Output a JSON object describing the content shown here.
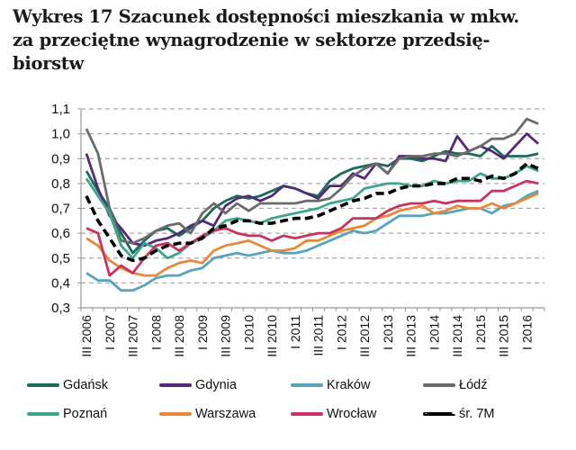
{
  "title": {
    "line1": "Wykres 17 Szacunek dostępności mieszkania w mkw.",
    "line2": "za przeciętne wynagrodzenie w sektorze przedsię-",
    "line3": "biorstw"
  },
  "chart_data": {
    "type": "line",
    "title": "Wykres 17 Szacunek dostępności mieszkania w mkw. za przeciętne wynagrodzenie w sektorze przedsiębiorstw",
    "xlabel": "",
    "ylabel": "",
    "ylim": [
      0.3,
      1.1
    ],
    "yticks": [
      "0,3",
      "0,4",
      "0,5",
      "0,6",
      "0,7",
      "0,8",
      "0,9",
      "1,0",
      "1,1"
    ],
    "grid": "horizontal dashed",
    "legend_position": "bottom",
    "x": [
      "III 2006",
      "IV 2006",
      "I 2007",
      "II 2007",
      "III 2007",
      "IV 2007",
      "I 2008",
      "II 2008",
      "III 2008",
      "IV 2008",
      "I 2009",
      "II 2009",
      "III 2009",
      "IV 2009",
      "I 2010",
      "II 2010",
      "III 2010",
      "IV 2010",
      "I 2011",
      "II 2011",
      "III 2011",
      "IV 2011",
      "I 2012",
      "II 2012",
      "III 2012",
      "IV 2012",
      "I 2013",
      "II 2013",
      "III 2013",
      "IV 2013",
      "I 2014",
      "II 2014",
      "III 2014",
      "IV 2014",
      "I 2015",
      "II 2015",
      "III 2015",
      "IV 2015",
      "I 2016",
      "II 2016"
    ],
    "xtick_labels": [
      "III 2006",
      "I 2007",
      "III 2007",
      "I 2008",
      "III 2008",
      "I 2009",
      "III 2009",
      "I 2010",
      "III 2010",
      "I 2011",
      "III 2011",
      "I 2012",
      "III 2012",
      "I 2013",
      "III 2013",
      "I 2014",
      "III 2014",
      "I 2015",
      "III 2015",
      "I 2016"
    ],
    "series": [
      {
        "name": "Gdańsk",
        "color": "#1a6b5a",
        "dashed": false,
        "values": [
          0.85,
          0.77,
          0.7,
          0.6,
          0.52,
          0.57,
          0.61,
          0.62,
          0.59,
          0.62,
          0.65,
          0.7,
          0.73,
          0.75,
          0.74,
          0.75,
          0.77,
          0.79,
          0.78,
          0.76,
          0.75,
          0.81,
          0.84,
          0.86,
          0.87,
          0.88,
          0.87,
          0.9,
          0.9,
          0.89,
          0.91,
          0.93,
          0.92,
          0.92,
          0.91,
          0.95,
          0.91,
          0.91,
          0.91,
          0.92
        ]
      },
      {
        "name": "Gdynia",
        "color": "#55287a",
        "dashed": false,
        "values": [
          0.92,
          0.78,
          0.67,
          0.62,
          0.56,
          0.55,
          0.57,
          0.58,
          0.6,
          0.63,
          0.65,
          0.63,
          0.71,
          0.74,
          0.75,
          0.73,
          0.75,
          0.79,
          0.78,
          0.76,
          0.74,
          0.79,
          0.79,
          0.84,
          0.82,
          0.88,
          0.84,
          0.91,
          0.91,
          0.9,
          0.9,
          0.89,
          0.99,
          0.93,
          0.95,
          0.93,
          0.9,
          0.95,
          1.0,
          0.96
        ]
      },
      {
        "name": "Kraków",
        "color": "#5aa3bd",
        "dashed": false,
        "values": [
          0.44,
          0.41,
          0.41,
          0.37,
          0.37,
          0.39,
          0.42,
          0.43,
          0.43,
          0.45,
          0.46,
          0.5,
          0.51,
          0.52,
          0.51,
          0.52,
          0.53,
          0.52,
          0.52,
          0.53,
          0.55,
          0.57,
          0.59,
          0.61,
          0.6,
          0.61,
          0.64,
          0.67,
          0.67,
          0.67,
          0.68,
          0.68,
          0.69,
          0.7,
          0.7,
          0.68,
          0.71,
          0.72,
          0.75,
          0.77
        ]
      },
      {
        "name": "Łódź",
        "color": "#6b6b6b",
        "dashed": false,
        "values": [
          1.02,
          0.92,
          0.7,
          0.57,
          0.56,
          0.58,
          0.61,
          0.63,
          0.64,
          0.6,
          0.68,
          0.72,
          0.68,
          0.72,
          0.69,
          0.72,
          0.72,
          0.72,
          0.72,
          0.73,
          0.73,
          0.74,
          0.78,
          0.83,
          0.86,
          0.88,
          0.84,
          0.9,
          0.91,
          0.91,
          0.92,
          0.92,
          0.91,
          0.93,
          0.95,
          0.98,
          0.98,
          1.0,
          1.06,
          1.04
        ]
      },
      {
        "name": "Poznań",
        "color": "#3fa58f",
        "dashed": false,
        "values": [
          0.82,
          0.75,
          0.68,
          0.55,
          0.5,
          0.56,
          0.54,
          0.5,
          0.52,
          0.56,
          0.58,
          0.61,
          0.65,
          0.66,
          0.65,
          0.64,
          0.66,
          0.67,
          0.68,
          0.69,
          0.7,
          0.72,
          0.73,
          0.74,
          0.78,
          0.79,
          0.8,
          0.8,
          0.79,
          0.79,
          0.81,
          0.8,
          0.81,
          0.81,
          0.84,
          0.82,
          0.82,
          0.84,
          0.87,
          0.85
        ]
      },
      {
        "name": "Warszawa",
        "color": "#e8883a",
        "dashed": false,
        "values": [
          0.58,
          0.55,
          0.49,
          0.46,
          0.44,
          0.43,
          0.43,
          0.46,
          0.48,
          0.49,
          0.48,
          0.53,
          0.55,
          0.56,
          0.57,
          0.55,
          0.53,
          0.53,
          0.54,
          0.57,
          0.57,
          0.59,
          0.61,
          0.62,
          0.63,
          0.66,
          0.67,
          0.69,
          0.7,
          0.71,
          0.68,
          0.69,
          0.71,
          0.7,
          0.7,
          0.72,
          0.7,
          0.72,
          0.74,
          0.76
        ]
      },
      {
        "name": "Wrocław",
        "color": "#c7345f",
        "dashed": false,
        "values": [
          0.62,
          0.6,
          0.43,
          0.47,
          0.44,
          0.5,
          0.55,
          0.56,
          0.53,
          0.56,
          0.59,
          0.61,
          0.62,
          0.6,
          0.59,
          0.59,
          0.57,
          0.59,
          0.58,
          0.59,
          0.6,
          0.6,
          0.62,
          0.66,
          0.66,
          0.66,
          0.69,
          0.71,
          0.72,
          0.72,
          0.73,
          0.72,
          0.73,
          0.73,
          0.73,
          0.77,
          0.77,
          0.79,
          0.81,
          0.8
        ]
      },
      {
        "name": "śr. 7M",
        "color": "#000000",
        "dashed": true,
        "values": [
          0.75,
          0.65,
          0.58,
          0.51,
          0.49,
          0.5,
          0.53,
          0.55,
          0.56,
          0.56,
          0.58,
          0.62,
          0.63,
          0.65,
          0.65,
          0.64,
          0.64,
          0.65,
          0.66,
          0.66,
          0.67,
          0.69,
          0.71,
          0.73,
          0.74,
          0.76,
          0.76,
          0.78,
          0.79,
          0.79,
          0.8,
          0.8,
          0.82,
          0.82,
          0.81,
          0.83,
          0.82,
          0.84,
          0.88,
          0.86
        ]
      }
    ]
  }
}
